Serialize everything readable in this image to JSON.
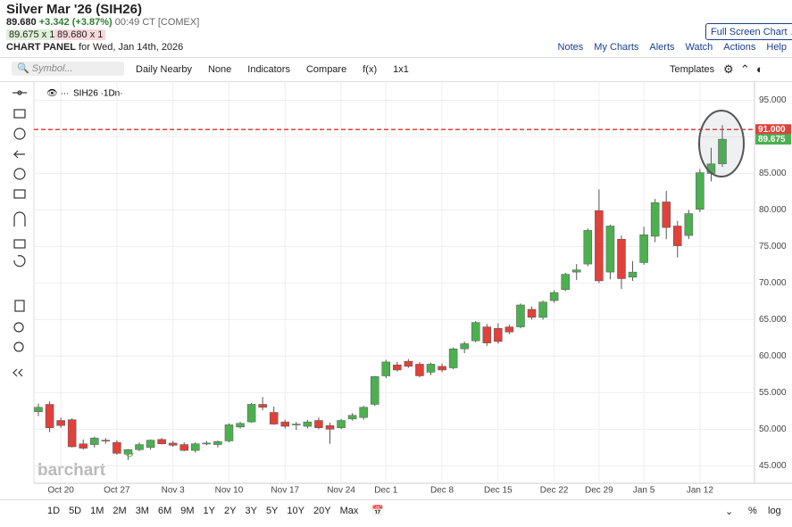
{
  "header": {
    "title": "Silver Mar '26 (SIH26)",
    "last": "89.680",
    "change": "+3.342 (+3.87%)",
    "time": "00:49 CT [COMEX]",
    "bid": "89.675 x 1",
    "ask": "89.680 x 1",
    "panel": "CHART PANEL",
    "panel_date": "for Wed, Jan 14th, 2026",
    "full_screen": "Full Screen Chart",
    "links": [
      "Notes",
      "My Charts",
      "Alerts",
      "Watch",
      "Actions",
      "Help"
    ]
  },
  "toolbar": {
    "symbol": "Symbol...",
    "items": [
      "Daily Nearby",
      "None",
      "Indicators",
      "Compare",
      "f(x)",
      "1x1"
    ],
    "templates": "Templates"
  },
  "legend": "SIH26 ·1Dn·",
  "watermark": "barchart",
  "periods": [
    "1D",
    "5D",
    "1M",
    "2M",
    "3M",
    "6M",
    "9M",
    "1Y",
    "2Y",
    "3Y",
    "5Y",
    "10Y",
    "20Y",
    "Max"
  ],
  "percent": "%",
  "log": "log",
  "chart_data": {
    "type": "candlestick",
    "up_color": "#4caf50",
    "down_color": "#e0413a",
    "categories": [
      null,
      null,
      "Oct 20",
      null,
      null,
      null,
      null,
      "Oct 27",
      null,
      null,
      null,
      null,
      "Nov 3",
      null,
      null,
      null,
      null,
      "Nov 10",
      null,
      null,
      null,
      null,
      "Nov 17",
      null,
      null,
      null,
      null,
      "Nov 24",
      null,
      null,
      null,
      "Dec 1",
      null,
      null,
      null,
      null,
      "Dec 8",
      null,
      null,
      null,
      null,
      "Dec 15",
      null,
      null,
      null,
      null,
      "Dec 22",
      null,
      null,
      null,
      "Dec 29",
      null,
      null,
      null,
      "Jan 5",
      null,
      null,
      null,
      null,
      "Jan 12",
      null,
      null
    ],
    "open": [
      52.4,
      53.4,
      51.2,
      51.3,
      48.0,
      47.9,
      48.5,
      48.2,
      46.6,
      47.2,
      47.5,
      48.6,
      48.1,
      47.9,
      47.1,
      48.0,
      47.9,
      48.4,
      50.3,
      51.0,
      53.4,
      52.3,
      51.0,
      50.6,
      50.4,
      51.2,
      50.5,
      50.2,
      51.4,
      51.6,
      53.4,
      57.3,
      58.8,
      59.3,
      58.9,
      57.8,
      58.6,
      58.4,
      61.0,
      62.1,
      64.0,
      63.8,
      64.0,
      64.0,
      66.4,
      65.3,
      67.6,
      69.1,
      71.5,
      72.6,
      79.9,
      71.5,
      76.0,
      70.8,
      72.8,
      76.4,
      81.1,
      77.8,
      76.5,
      80.1,
      85.0,
      86.3
    ],
    "high": [
      53.5,
      53.8,
      51.6,
      51.5,
      48.6,
      49.0,
      48.8,
      48.5,
      47.3,
      48.2,
      48.6,
      48.8,
      48.4,
      48.2,
      48.2,
      48.4,
      48.5,
      50.8,
      51.0,
      53.6,
      54.4,
      53.1,
      51.3,
      51.0,
      51.3,
      51.6,
      50.9,
      51.4,
      52.2,
      53.2,
      57.3,
      59.5,
      59.2,
      59.6,
      59.2,
      59.1,
      59.0,
      61.2,
      62.0,
      64.8,
      64.4,
      64.5,
      64.3,
      67.2,
      66.8,
      67.6,
      69.0,
      71.4,
      72.6,
      77.5,
      82.8,
      78.0,
      76.5,
      73.0,
      77.7,
      81.5,
      82.6,
      78.5,
      80.0,
      85.6,
      88.5,
      91.6
    ],
    "low": [
      51.8,
      49.6,
      50.2,
      47.5,
      47.2,
      47.5,
      48.0,
      46.5,
      45.8,
      47.0,
      47.2,
      47.9,
      47.6,
      47.0,
      46.8,
      47.8,
      47.5,
      48.2,
      50.1,
      50.9,
      52.6,
      50.6,
      50.1,
      49.9,
      50.1,
      50.0,
      48.0,
      50.0,
      51.2,
      51.3,
      53.2,
      57.0,
      57.9,
      58.4,
      57.1,
      57.4,
      57.8,
      58.2,
      60.4,
      61.9,
      61.4,
      61.7,
      63.0,
      63.8,
      65.0,
      65.0,
      67.3,
      68.9,
      70.4,
      72.3,
      70.0,
      70.5,
      69.2,
      70.3,
      72.5,
      75.6,
      76.0,
      73.5,
      76.0,
      79.7,
      83.9,
      85.9
    ],
    "close": [
      53.0,
      50.2,
      50.5,
      47.6,
      47.4,
      48.8,
      48.4,
      46.7,
      47.2,
      47.9,
      48.5,
      48.0,
      47.8,
      47.1,
      48.0,
      48.1,
      48.3,
      50.6,
      50.8,
      53.4,
      53.0,
      50.7,
      50.4,
      50.7,
      51.0,
      50.2,
      50.0,
      51.2,
      51.9,
      53.0,
      57.2,
      59.2,
      58.1,
      58.6,
      57.3,
      58.9,
      58.1,
      61.0,
      61.7,
      64.6,
      61.8,
      62.0,
      63.3,
      67.0,
      65.3,
      67.4,
      68.7,
      71.2,
      71.8,
      77.2,
      70.3,
      77.8,
      70.6,
      71.5,
      76.6,
      81.0,
      77.6,
      75.1,
      79.5,
      85.1,
      86.3,
      89.68
    ],
    "ylim": [
      42.6,
      97.5
    ],
    "yticks": [
      {
        "value": 45,
        "label": "45.000"
      },
      {
        "value": 50,
        "label": "50.000"
      },
      {
        "value": 55,
        "label": "55.000"
      },
      {
        "value": 60,
        "label": "60.000"
      },
      {
        "value": 65,
        "label": "65.000"
      },
      {
        "value": 70,
        "label": "70.000"
      },
      {
        "value": 75,
        "label": "75.000"
      },
      {
        "value": 80,
        "label": "80.000"
      },
      {
        "value": 85,
        "label": "85.000"
      },
      {
        "value": 90,
        "label": "90.000"
      },
      {
        "value": 95,
        "label": "95.000"
      }
    ],
    "price_lines": [
      {
        "value": 91,
        "label": "91.000",
        "color": "#e0413a"
      },
      {
        "value": 89.675,
        "label": "89.675",
        "color": "#4caf50"
      }
    ],
    "grid": true
  }
}
